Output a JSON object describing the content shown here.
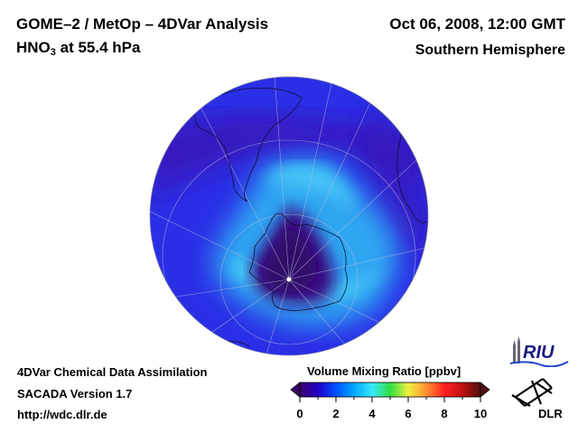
{
  "header": {
    "title_line1": "GOME–2 / MetOp – 4DVar Analysis",
    "species": "HNO",
    "species_subscript": "3",
    "level": "at 55.4 hPa",
    "date": "Oct 06, 2008, 12:00 GMT",
    "region": "Southern Hemisphere"
  },
  "footer": {
    "line1": "4DVar Chemical Data Assimilation",
    "line2": "SACADA Version 1.7",
    "line3": "http://wdc.dlr.de"
  },
  "map": {
    "projection": "orthographic-south-pole",
    "field": "HNO3 volume mixing ratio",
    "features": [
      "south-america-coastline",
      "antarctica-coastline",
      "africa-coastline",
      "graticule",
      "south-pole-marker"
    ],
    "colors": {
      "background_low": "#2a1fd6",
      "edge": "#3a2bc8",
      "collar": "#2fa8f0",
      "collar_bright": "#47c8f5",
      "vortex": "#3a0a7a",
      "vortex_core": "#2c0660"
    }
  },
  "colorbar": {
    "title": "Volume Mixing Ratio [ppbv]",
    "min": 0,
    "max": 10,
    "ticks": [
      "0",
      "2",
      "4",
      "6",
      "8",
      "10"
    ],
    "stops": [
      "#3a0066",
      "#2200c8",
      "#0050ff",
      "#00a8ff",
      "#38e8ff",
      "#30e040",
      "#f0f040",
      "#ff9030",
      "#ff2020",
      "#c01010",
      "#501010"
    ]
  },
  "logos": {
    "riu": "RIU",
    "dlr": "DLR"
  }
}
